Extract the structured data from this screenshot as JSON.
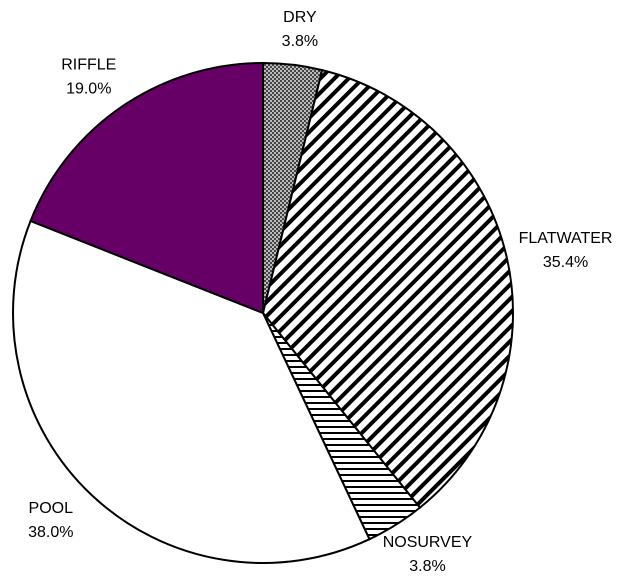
{
  "chart_data": {
    "type": "pie",
    "categories": [
      "DRY",
      "FLATWATER",
      "NOSURVEY",
      "POOL",
      "RIFFLE"
    ],
    "values": [
      3.8,
      35.4,
      3.8,
      38.0,
      19.0
    ],
    "value_labels": [
      "3.8%",
      "35.4%",
      "3.8%",
      "38.0%",
      "19.0%"
    ],
    "colors": [
      "#888888",
      "#ffffff",
      "#ffffff",
      "#ffffff",
      "#660066"
    ],
    "patterns": [
      "dots",
      "diagonal",
      "horizontal",
      "none",
      "none"
    ]
  }
}
